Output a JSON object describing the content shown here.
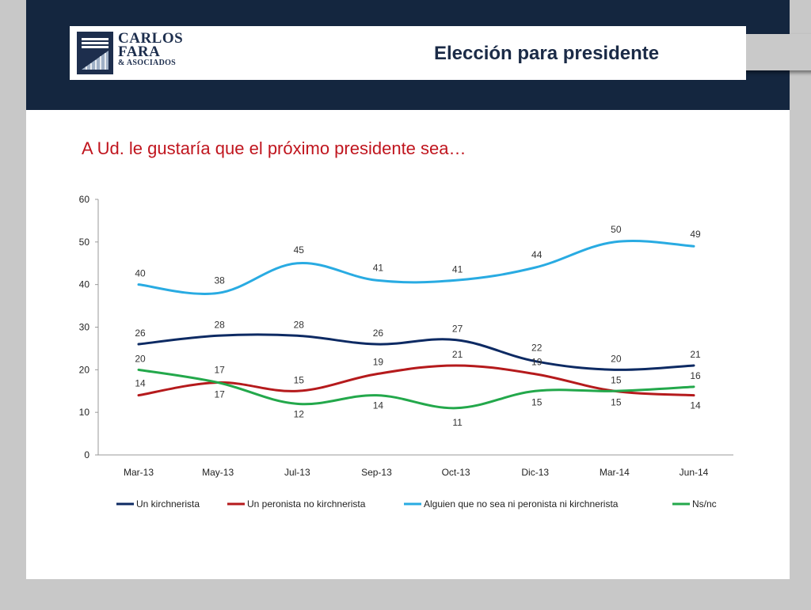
{
  "header": {
    "logo": {
      "line1": "CARLOS",
      "line2": "FARA",
      "line3": "& ASOCIADOS"
    },
    "title": "Elección para presidente"
  },
  "question": "A Ud. le gustaría que el próximo presidente sea…",
  "colors": {
    "header_band": "#14263f",
    "question_text": "#c0151e",
    "series": [
      "#0d2a63",
      "#b51a1c",
      "#29abe2",
      "#23a84b"
    ]
  },
  "chart_data": {
    "type": "line",
    "categories": [
      "Mar-13",
      "May-13",
      "Jul-13",
      "Sep-13",
      "Oct-13",
      "Dic-13",
      "Mar-14",
      "Jun-14"
    ],
    "ylim": [
      0,
      60
    ],
    "yticks": [
      0,
      10,
      20,
      30,
      40,
      50,
      60
    ],
    "smooth": true,
    "grid": false,
    "legend_position": "bottom",
    "series": [
      {
        "name": "Un kirchnerista",
        "color": "#0d2a63",
        "values": [
          26,
          28,
          28,
          26,
          27,
          22,
          20,
          21
        ]
      },
      {
        "name": "Un peronista no kirchnerista",
        "color": "#b51a1c",
        "values": [
          14,
          17,
          15,
          19,
          21,
          19,
          15,
          14
        ]
      },
      {
        "name": "Alguien que no sea ni peronista ni kirchnerista",
        "color": "#29abe2",
        "values": [
          40,
          38,
          45,
          41,
          41,
          44,
          50,
          49
        ]
      },
      {
        "name": "Ns/nc",
        "color": "#23a84b",
        "values": [
          20,
          17,
          12,
          14,
          11,
          15,
          15,
          16
        ]
      }
    ]
  }
}
